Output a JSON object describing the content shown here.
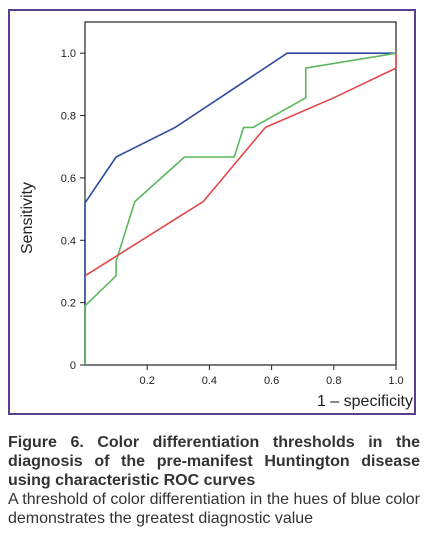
{
  "chart_data": {
    "type": "line",
    "title": "",
    "xlabel": "1 – specificity",
    "ylabel": "Sensitivity",
    "xlim": [
      0,
      1
    ],
    "ylim": [
      0,
      1.1
    ],
    "x_ticks": [
      "0.2",
      "0.4",
      "0.6",
      "0.8",
      "1.0"
    ],
    "x_tick_values": [
      0.2,
      0.4,
      0.6,
      0.8,
      1.0
    ],
    "y_ticks": [
      "0",
      "0.2",
      "0.4",
      "0.6",
      "0.8",
      "1.0"
    ],
    "y_tick_values": [
      0,
      0.2,
      0.4,
      0.6,
      0.8,
      1.0
    ],
    "grid": false,
    "legend": "none",
    "series": [
      {
        "color": "#2e4aa3",
        "x": [
          0,
          0,
          0.1,
          0.29,
          0.65,
          1.0
        ],
        "y": [
          0,
          0.52,
          0.667,
          0.762,
          1.0,
          1.0
        ]
      },
      {
        "color": "#5cb85c",
        "x": [
          0,
          0,
          0.1,
          0.1,
          0.16,
          0.32,
          0.48,
          0.51,
          0.54,
          0.71,
          0.71,
          1.0
        ],
        "y": [
          0,
          0.19,
          0.286,
          0.333,
          0.524,
          0.667,
          0.667,
          0.762,
          0.762,
          0.857,
          0.952,
          1.0
        ]
      },
      {
        "color": "#e2474a",
        "x": [
          0,
          0.38,
          0.58,
          0.8,
          1.0,
          1.0
        ],
        "y": [
          0.286,
          0.524,
          0.762,
          0.857,
          0.952,
          1.0
        ]
      }
    ]
  },
  "caption": {
    "title": "Figure 6. Color differentiation thresholds in the diagnosis of the pre-manifest Huntington disease using characteristic ROC curves",
    "body": "A threshold of color differentiation in the hues of blue color demonstrates the greatest diagnostic value"
  },
  "colors": {
    "frame": "#5b3e8f",
    "axis": "#222222",
    "text": "#333333"
  }
}
